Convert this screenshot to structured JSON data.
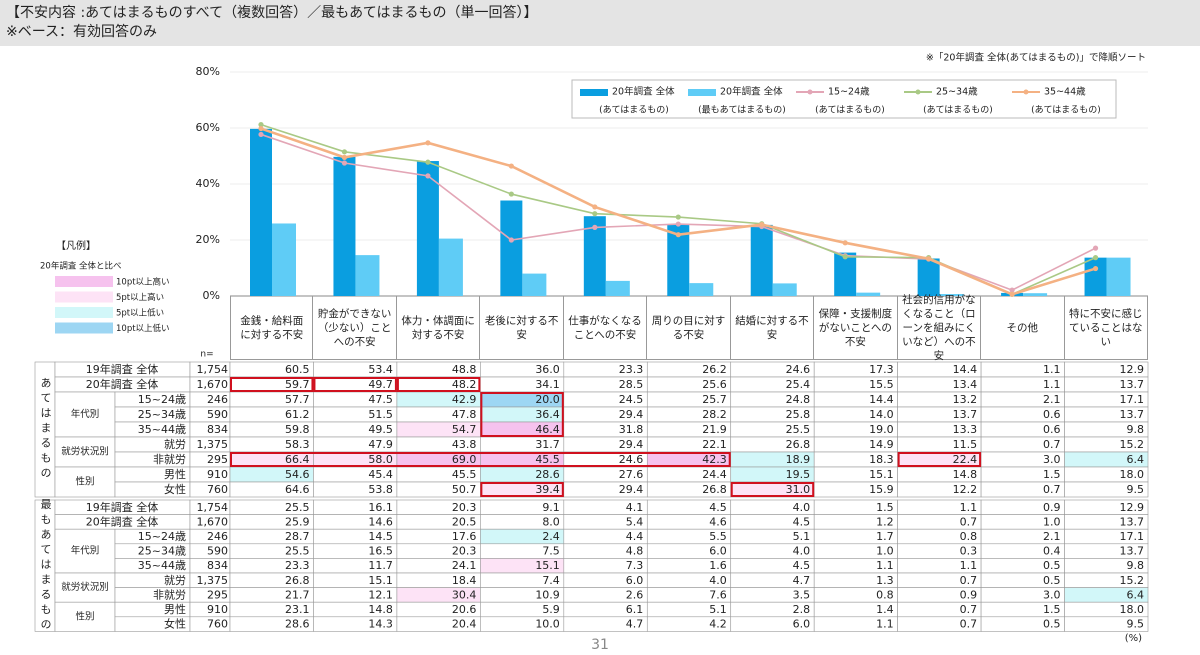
{
  "header": {
    "title": "【不安内容 :あてはまるものすべて（複数回答）／最もあてはまるもの（単一回答）】",
    "subtitle": "※ベース：有効回答のみ"
  },
  "chart_data": {
    "type": "bar_line",
    "note": "※「20年調査 全体(あてはまるもの)」で降順ソート",
    "categories": [
      "金銭・給料面に対する不安",
      "貯金ができない（少ない）ことへの不安",
      "体力・体調面に対する不安",
      "老後に対する不安",
      "仕事がなくなることへの不安",
      "周りの目に対する不安",
      "結婚に対する不安",
      "保障・支援制度がないことへの不安",
      "社会的信用がなくなること（ローンを組みにくいなど）への不安",
      "その他",
      "特に不安に感じていることはない"
    ],
    "ylim": [
      0,
      80
    ],
    "yticks": [
      {
        "value": 0,
        "label": "0%"
      },
      {
        "value": 20,
        "label": "20%"
      },
      {
        "value": 40,
        "label": "40%"
      },
      {
        "value": 60,
        "label": "60%"
      },
      {
        "value": 80,
        "label": "80%"
      }
    ],
    "grid": true,
    "series": [
      {
        "name": "20年調査 全体",
        "sublabel": "(あてはまるもの)",
        "kind": "bar",
        "color": "#0a9ee0",
        "values": [
          59.7,
          49.7,
          48.2,
          34.1,
          28.5,
          25.6,
          25.4,
          15.5,
          13.4,
          1.1,
          13.7
        ]
      },
      {
        "name": "20年調査 全体",
        "sublabel": "(最もあてはまるもの)",
        "kind": "bar",
        "color": "#5fccf6",
        "values": [
          25.9,
          14.6,
          20.5,
          8.0,
          5.4,
          4.6,
          4.5,
          1.2,
          0.7,
          1.0,
          13.7
        ]
      },
      {
        "name": "15~24歳",
        "sublabel": "(あてはまるもの)",
        "kind": "line",
        "color": "#e3a6b6",
        "values": [
          57.7,
          47.5,
          42.9,
          20.0,
          24.5,
          25.7,
          24.8,
          14.4,
          13.2,
          2.1,
          17.1
        ]
      },
      {
        "name": "25~34歳",
        "sublabel": "(あてはまるもの)",
        "kind": "line",
        "color": "#a9c985",
        "values": [
          61.2,
          51.5,
          47.8,
          36.4,
          29.4,
          28.2,
          25.8,
          14.0,
          13.7,
          0.6,
          13.7
        ]
      },
      {
        "name": "35~44歳",
        "sublabel": "(あてはまるもの)",
        "kind": "line",
        "color": "#f4b183",
        "values": [
          59.8,
          49.5,
          54.7,
          46.4,
          31.8,
          21.9,
          25.5,
          19.0,
          13.3,
          0.6,
          9.8
        ]
      }
    ]
  },
  "highlight_legend": {
    "title": "【凡例】",
    "subtitle": "20年調査 全体と比べ",
    "items": [
      {
        "label": "10pt以上高い",
        "color": "#f6c2ee"
      },
      {
        "label": "5pt以上高い",
        "color": "#fde3f6"
      },
      {
        "label": "5pt以上低い",
        "color": "#d2f7f9"
      },
      {
        "label": "10pt以上低い",
        "color": "#9dd6f3"
      }
    ]
  },
  "table_header": {
    "n_label": "n="
  },
  "tables": [
    {
      "title": "あてはまるもの",
      "blocks": [
        {
          "rows": [
            {
              "label": "19年調査 全体",
              "n": "1,754",
              "values": [
                "60.5",
                "53.4",
                "48.8",
                "36.0",
                "23.3",
                "26.2",
                "24.6",
                "17.3",
                "14.4",
                "1.1",
                "12.9"
              ]
            }
          ]
        },
        {
          "rows": [
            {
              "label": "20年調査 全体",
              "n": "1,670",
              "values": [
                "59.7",
                "49.7",
                "48.2",
                "34.1",
                "28.5",
                "25.6",
                "25.4",
                "15.5",
                "13.4",
                "1.1",
                "13.7"
              ]
            }
          ]
        },
        {
          "label": "年代別",
          "rows": [
            {
              "label": "15~24歳",
              "n": "246",
              "values": [
                "57.7",
                "47.5",
                "42.9",
                "20.0",
                "24.5",
                "25.7",
                "24.8",
                "14.4",
                "13.2",
                "2.1",
                "17.1"
              ]
            },
            {
              "label": "25~34歳",
              "n": "590",
              "values": [
                "61.2",
                "51.5",
                "47.8",
                "36.4",
                "29.4",
                "28.2",
                "25.8",
                "14.0",
                "13.7",
                "0.6",
                "13.7"
              ]
            },
            {
              "label": "35~44歳",
              "n": "834",
              "values": [
                "59.8",
                "49.5",
                "54.7",
                "46.4",
                "31.8",
                "21.9",
                "25.5",
                "19.0",
                "13.3",
                "0.6",
                "9.8"
              ]
            }
          ]
        },
        {
          "label": "就労状況別",
          "rows": [
            {
              "label": "就労",
              "n": "1,375",
              "values": [
                "58.3",
                "47.9",
                "43.8",
                "31.7",
                "29.4",
                "22.1",
                "26.8",
                "14.9",
                "11.5",
                "0.7",
                "15.2"
              ]
            },
            {
              "label": "非就労",
              "n": "295",
              "values": [
                "66.4",
                "58.0",
                "69.0",
                "45.5",
                "24.6",
                "42.3",
                "18.9",
                "18.3",
                "22.4",
                "3.0",
                "6.4"
              ]
            }
          ]
        },
        {
          "label": "性別",
          "rows": [
            {
              "label": "男性",
              "n": "910",
              "values": [
                "54.6",
                "45.4",
                "45.5",
                "28.6",
                "27.6",
                "24.4",
                "19.5",
                "15.1",
                "14.8",
                "1.5",
                "18.0"
              ]
            },
            {
              "label": "女性",
              "n": "760",
              "values": [
                "64.6",
                "53.8",
                "50.7",
                "39.4",
                "29.4",
                "26.8",
                "31.0",
                "15.9",
                "12.2",
                "0.7",
                "9.5"
              ]
            }
          ]
        }
      ]
    },
    {
      "title": "最もあてはまるもの",
      "blocks": [
        {
          "rows": [
            {
              "label": "19年調査 全体",
              "n": "1,754",
              "values": [
                "25.5",
                "16.1",
                "20.3",
                "9.1",
                "4.1",
                "4.5",
                "4.0",
                "1.5",
                "1.1",
                "0.9",
                "12.9"
              ]
            }
          ]
        },
        {
          "rows": [
            {
              "label": "20年調査 全体",
              "n": "1,670",
              "values": [
                "25.9",
                "14.6",
                "20.5",
                "8.0",
                "5.4",
                "4.6",
                "4.5",
                "1.2",
                "0.7",
                "1.0",
                "13.7"
              ]
            }
          ]
        },
        {
          "label": "年代別",
          "rows": [
            {
              "label": "15~24歳",
              "n": "246",
              "values": [
                "28.7",
                "14.5",
                "17.6",
                "2.4",
                "4.4",
                "5.5",
                "5.1",
                "1.7",
                "0.8",
                "2.1",
                "17.1"
              ]
            },
            {
              "label": "25~34歳",
              "n": "590",
              "values": [
                "25.5",
                "16.5",
                "20.3",
                "7.5",
                "4.8",
                "6.0",
                "4.0",
                "1.0",
                "0.3",
                "0.4",
                "13.7"
              ]
            },
            {
              "label": "35~44歳",
              "n": "834",
              "values": [
                "23.3",
                "11.7",
                "24.1",
                "15.1",
                "7.3",
                "1.6",
                "4.5",
                "1.1",
                "1.1",
                "0.5",
                "9.8"
              ]
            }
          ]
        },
        {
          "label": "就労状況別",
          "rows": [
            {
              "label": "就労",
              "n": "1,375",
              "values": [
                "26.8",
                "15.1",
                "18.4",
                "7.4",
                "6.0",
                "4.0",
                "4.7",
                "1.3",
                "0.7",
                "0.5",
                "15.2"
              ]
            },
            {
              "label": "非就労",
              "n": "295",
              "values": [
                "21.7",
                "12.1",
                "30.4",
                "10.9",
                "2.6",
                "7.6",
                "3.5",
                "0.8",
                "0.9",
                "3.0",
                "6.4"
              ]
            }
          ]
        },
        {
          "label": "性別",
          "rows": [
            {
              "label": "男性",
              "n": "910",
              "values": [
                "23.1",
                "14.8",
                "20.6",
                "5.9",
                "6.1",
                "5.1",
                "2.8",
                "1.4",
                "0.7",
                "1.5",
                "18.0"
              ]
            },
            {
              "label": "女性",
              "n": "760",
              "values": [
                "28.6",
                "14.3",
                "20.4",
                "10.0",
                "4.7",
                "4.2",
                "6.0",
                "1.1",
                "0.7",
                "0.5",
                "9.5"
              ]
            }
          ]
        }
      ]
    }
  ],
  "footer": {
    "unit": "(%)",
    "page": "31"
  }
}
